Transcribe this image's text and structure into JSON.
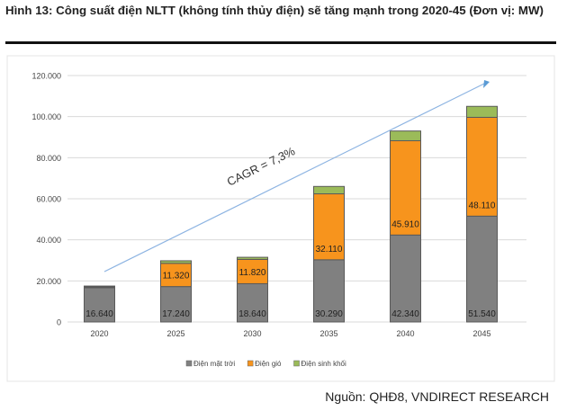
{
  "title": "Hình 13: Công suất điện NLTT (không tính thủy điện) sẽ tăng mạnh trong 2020-45 (Đơn vị: MW)",
  "source": "Nguồn: QHĐ8, VNDIRECT RESEARCH",
  "chart_data": {
    "type": "bar",
    "stacked": true,
    "categories": [
      "2020",
      "2025",
      "2030",
      "2035",
      "2040",
      "2045"
    ],
    "series": [
      {
        "name": "Điện mặt trời",
        "color": "#808080",
        "values": [
          16640,
          17240,
          18640,
          30290,
          42340,
          51540
        ],
        "labels": [
          "16.640",
          "17.240",
          "18.640",
          "30.290",
          "42.340",
          "51.540"
        ]
      },
      {
        "name": "Điện gió",
        "color": "#F7941D",
        "values": [
          0,
          11320,
          11820,
          32110,
          45910,
          48110
        ],
        "labels": [
          "",
          "11.320",
          "11.820",
          "32.110",
          "45.910",
          "48.110"
        ]
      },
      {
        "name": "Điện sinh khối",
        "color": "#9BBB59",
        "values": [
          850,
          1240,
          1040,
          3600,
          4750,
          5350
        ]
      }
    ],
    "ylim": [
      0,
      120000
    ],
    "yticks": [
      0,
      20000,
      40000,
      60000,
      80000,
      100000,
      120000
    ],
    "ytick_labels": [
      "0",
      "20.000",
      "40.000",
      "60.000",
      "80.000",
      "100.000",
      "120.000"
    ],
    "grid": true,
    "legend": "bottom",
    "annotation": "CAGR  = 7,3%"
  }
}
